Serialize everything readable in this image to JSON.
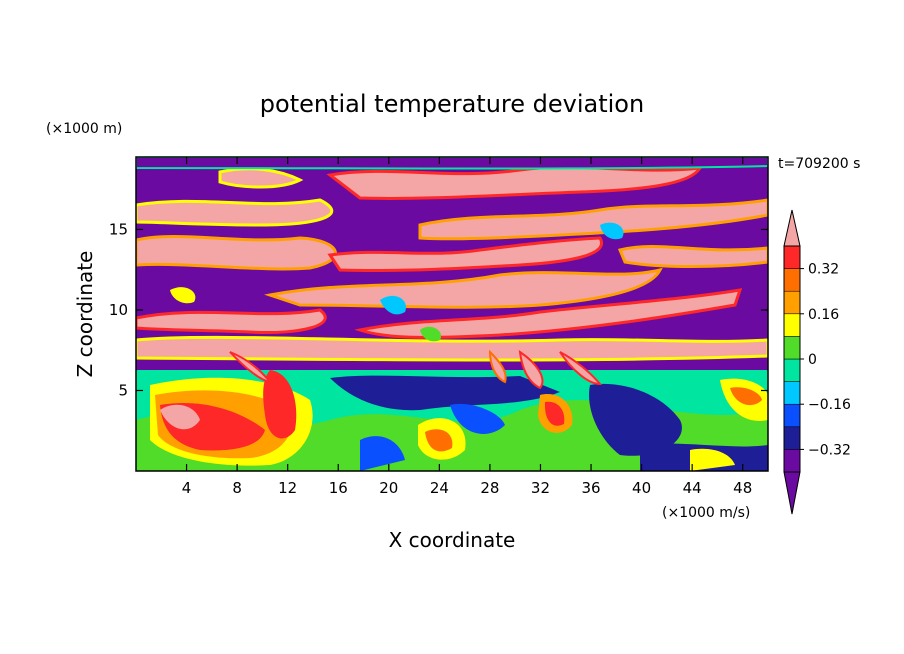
{
  "chart_data": {
    "type": "heatmap",
    "title": "potential temperature deviation",
    "time_label": "t=709200 s",
    "xlabel": "X coordinate",
    "ylabel": "Z coordinate",
    "x_unit": "(×1000 m/s)",
    "y_unit": "(×1000 m)",
    "xlim": [
      0,
      50
    ],
    "ylim": [
      0,
      19.5
    ],
    "x_ticks": [
      "4",
      "8",
      "12",
      "16",
      "20",
      "24",
      "28",
      "32",
      "36",
      "40",
      "44",
      "48"
    ],
    "x_tick_values": [
      4,
      8,
      12,
      16,
      20,
      24,
      28,
      32,
      36,
      40,
      44,
      48
    ],
    "y_ticks": [
      "5",
      "10",
      "15"
    ],
    "y_tick_values": [
      5,
      10,
      15
    ],
    "colorbar": {
      "labels": [
        "0.32",
        "0.16",
        "0",
        "−0.16",
        "−0.32"
      ],
      "label_values": [
        0.32,
        0.16,
        0,
        -0.16,
        -0.32
      ],
      "levels": [
        -0.4,
        -0.32,
        -0.24,
        -0.16,
        -0.08,
        0,
        0.08,
        0.16,
        0.24,
        0.32,
        0.4
      ],
      "colors": [
        "#6a0aa0",
        "#1e1e96",
        "#0a50ff",
        "#00c8ff",
        "#00e6a0",
        "#50dc28",
        "#ffff00",
        "#ffa000",
        "#ff6e00",
        "#ff2828",
        "#f4a6a6"
      ],
      "extend": "both"
    }
  }
}
